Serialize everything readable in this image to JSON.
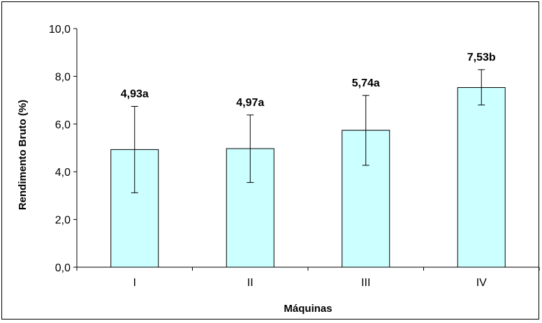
{
  "chart_data": {
    "type": "bar",
    "categories": [
      "I",
      "II",
      "III",
      "IV"
    ],
    "values": [
      4.93,
      4.97,
      5.74,
      7.53
    ],
    "error_bars": {
      "lower": [
        3.12,
        3.55,
        4.27,
        6.8
      ],
      "upper": [
        6.74,
        6.38,
        7.2,
        8.28
      ]
    },
    "data_labels": [
      "4,93a",
      "4,97a",
      "5,74a",
      "7,53b"
    ],
    "xlabel": "Máquinas",
    "ylabel": "Rendimento Bruto (%)",
    "ylim": [
      0,
      10
    ],
    "yticks": [
      0,
      2,
      4,
      6,
      8,
      10
    ],
    "ytick_labels": [
      "0,0",
      "2,0",
      "4,0",
      "6,0",
      "8,0",
      "10,0"
    ],
    "grid": false,
    "legend": "none",
    "colors": {
      "bar_fill": "#ccffff",
      "bar_stroke": "#000000",
      "frame": "#000000"
    }
  }
}
